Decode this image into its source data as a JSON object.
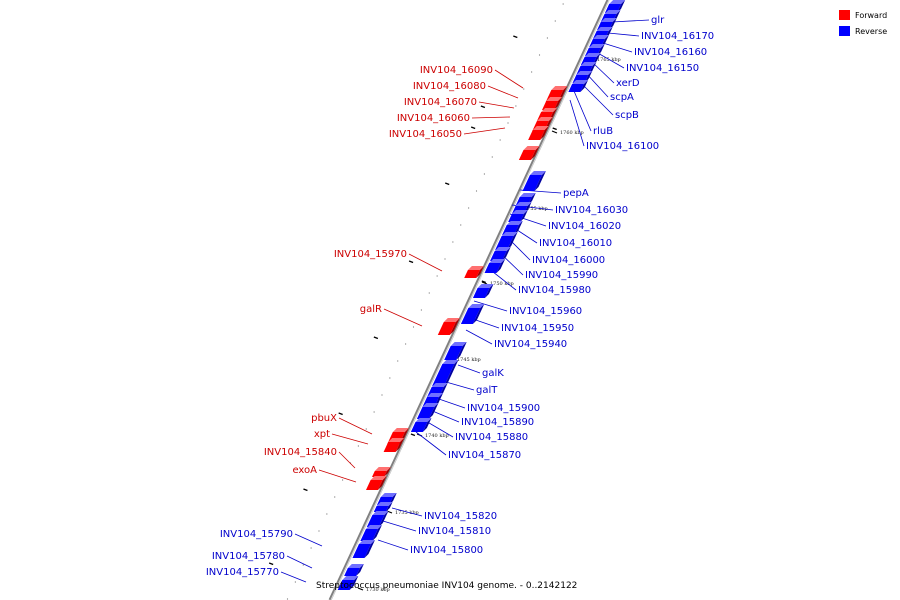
{
  "colors": {
    "forward": "#ff0000",
    "forward_dark": "#a00000",
    "forward_light": "#ff7070",
    "reverse": "#0000ff",
    "reverse_dark": "#0000a0",
    "reverse_light": "#7070ff",
    "forward_label": "#cc0000",
    "reverse_label": "#0000cc",
    "backbone": "#808080"
  },
  "legend": {
    "forward": "Forward",
    "reverse": "Reverse"
  },
  "caption": "Streptococcus pneumoniae INV104 genome. - 0..2142122",
  "kbp_ticks": [
    "1765 kbp",
    "1760 kbp",
    "1755 kbp",
    "1750 kbp",
    "1745 kbp",
    "1740 kbp",
    "1735 kbp",
    "1730 kbp"
  ],
  "forward_genes": [
    "INV104_16090",
    "INV104_16080",
    "INV104_16070",
    "INV104_16060",
    "INV104_16050",
    "INV104_15970",
    "galR",
    "pbuX",
    "xpt",
    "INV104_15840",
    "exoA"
  ],
  "reverse_genes": [
    "glr",
    "INV104_16170",
    "INV104_16160",
    "INV104_16150",
    "xerD",
    "scpA",
    "scpB",
    "rluB",
    "INV104_16100",
    "pepA",
    "INV104_16030",
    "INV104_16020",
    "INV104_16010",
    "INV104_16000",
    "INV104_15990",
    "INV104_15980",
    "INV104_15960",
    "INV104_15950",
    "INV104_15940",
    "galK",
    "galT",
    "INV104_15900",
    "INV104_15890",
    "INV104_15880",
    "INV104_15870",
    "INV104_15820",
    "INV104_15810",
    "INV104_15800",
    "INV104_15790",
    "INV104_15780",
    "INV104_15770"
  ]
}
